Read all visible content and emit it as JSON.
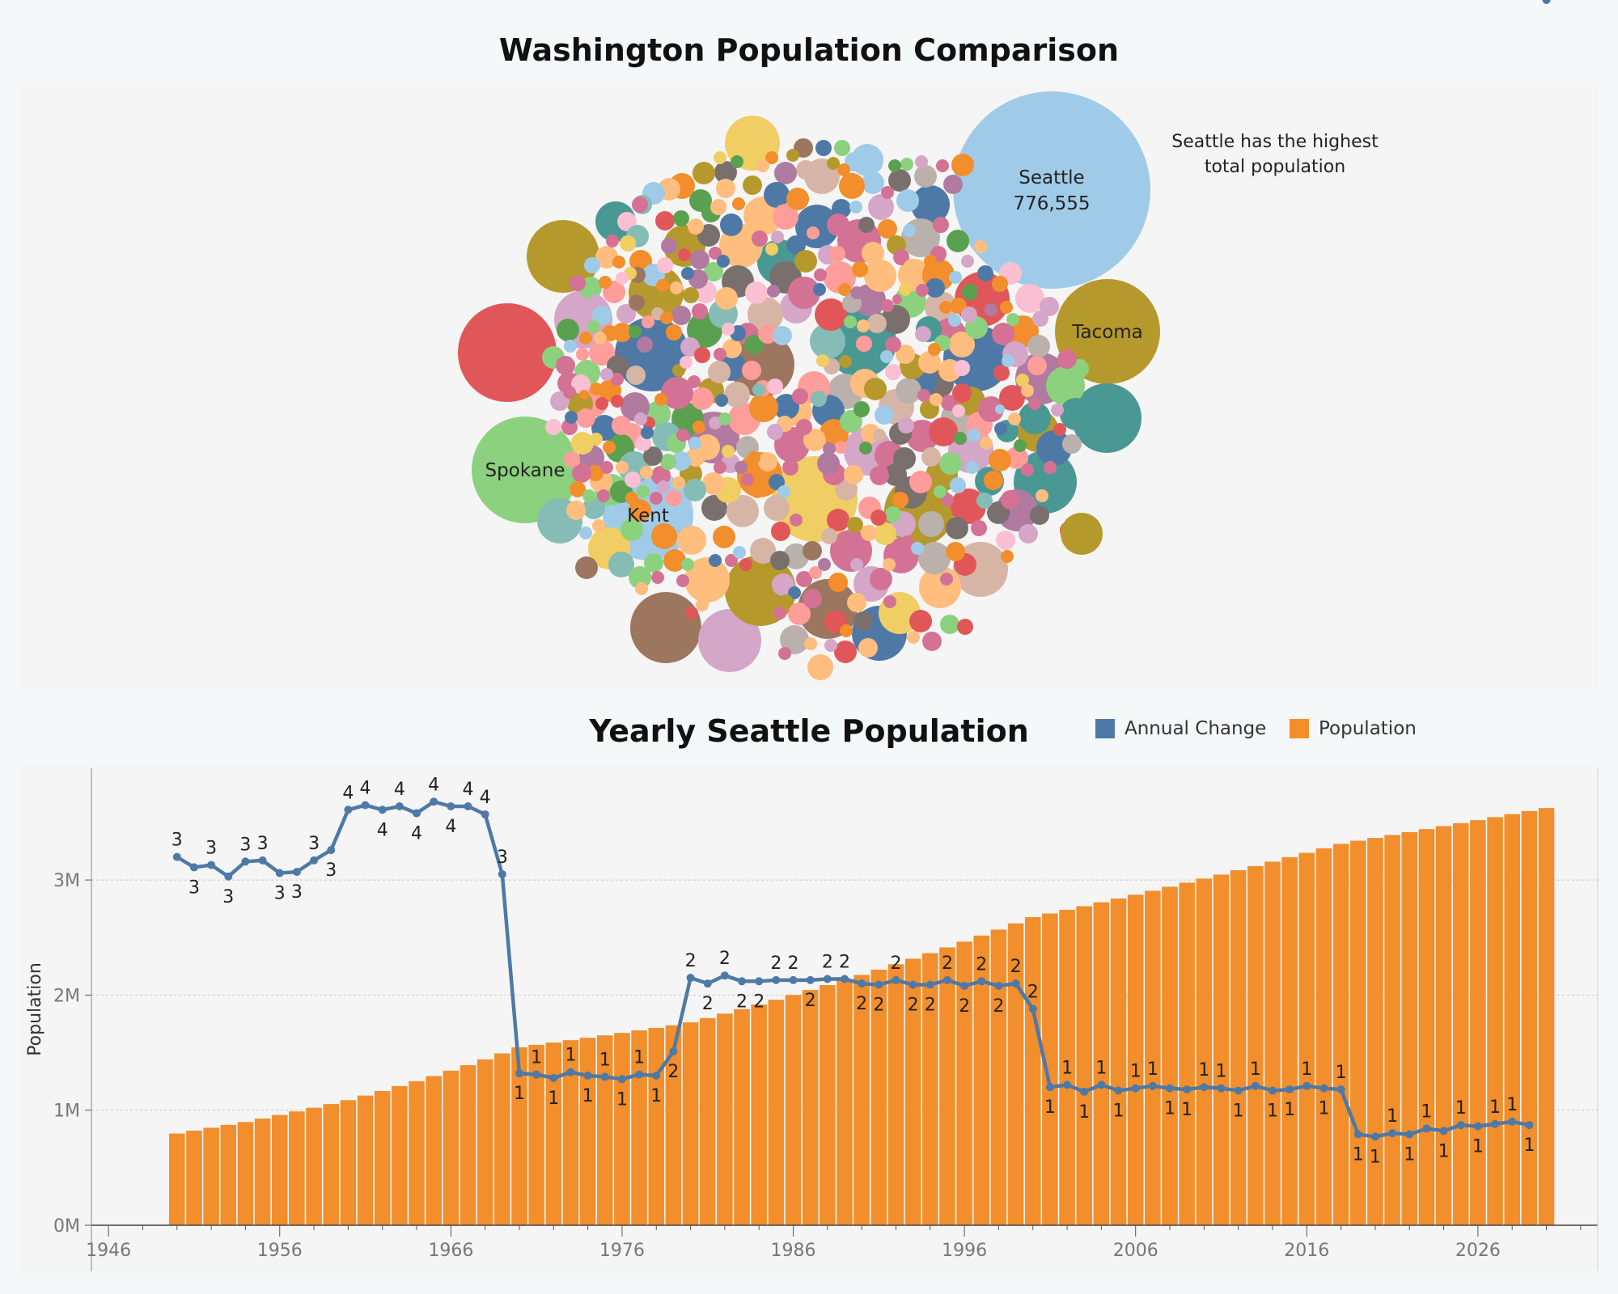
{
  "top_title": "Washington Population Comparison",
  "bottom_title": "Yearly Seattle Population",
  "annotation": {
    "line1": "Seattle has the highest",
    "line2": "total population"
  },
  "legend": [
    {
      "name": "Annual Change",
      "color": "#4e79a7"
    },
    {
      "name": "Population",
      "color": "#f28e2b"
    }
  ],
  "chart_data": [
    {
      "type": "bubble",
      "title": "Washington Population Comparison",
      "labeled_bubbles": [
        {
          "name": "Seattle",
          "value": 776555,
          "value_label": "776,555",
          "color": "#a0cbe8"
        },
        {
          "name": "Tacoma",
          "color": "#b6992d"
        },
        {
          "name": "Spokane",
          "color": "#8cd17d"
        },
        {
          "name": "Kent",
          "color": "#a0cbe8"
        }
      ],
      "palette": [
        "#4e79a7",
        "#a0cbe8",
        "#f28e2b",
        "#ffbe7d",
        "#59a14f",
        "#8cd17d",
        "#b6992d",
        "#f1ce63",
        "#499894",
        "#86bcb6",
        "#e15759",
        "#ff9d9a",
        "#79706e",
        "#bab0ac",
        "#d37295",
        "#fabfd2",
        "#b07aa1",
        "#d4a6c8",
        "#9d7660",
        "#d7b5a6"
      ]
    },
    {
      "type": "bar+line",
      "title": "Yearly Seattle Population",
      "ylabel": "Population",
      "ylim": [
        0,
        3900000
      ],
      "yticks": [
        {
          "value": 0,
          "label": "0M"
        },
        {
          "value": 1000000,
          "label": "1M"
        },
        {
          "value": 2000000,
          "label": "2M"
        },
        {
          "value": 3000000,
          "label": "3M"
        }
      ],
      "xlim": [
        1945,
        2033
      ],
      "xticks": [
        1946,
        1956,
        1966,
        1976,
        1986,
        1996,
        2006,
        2016,
        2026
      ],
      "years": [
        1950,
        1951,
        1952,
        1953,
        1954,
        1955,
        1956,
        1957,
        1958,
        1959,
        1960,
        1961,
        1962,
        1963,
        1964,
        1965,
        1966,
        1967,
        1968,
        1969,
        1970,
        1971,
        1972,
        1973,
        1974,
        1975,
        1976,
        1977,
        1978,
        1979,
        1980,
        1981,
        1982,
        1983,
        1984,
        1985,
        1986,
        1987,
        1988,
        1989,
        1990,
        1991,
        1992,
        1993,
        1994,
        1995,
        1996,
        1997,
        1998,
        1999,
        2000,
        2001,
        2002,
        2003,
        2004,
        2005,
        2006,
        2007,
        2008,
        2009,
        2010,
        2011,
        2012,
        2013,
        2014,
        2015,
        2016,
        2017,
        2018,
        2019,
        2020,
        2021,
        2022,
        2023,
        2024,
        2025,
        2026,
        2027,
        2028,
        2029,
        2030
      ],
      "series": [
        {
          "name": "Population",
          "color": "#f28e2b",
          "values": [
            797000,
            822000,
            847000,
            872000,
            897000,
            927000,
            958000,
            989000,
            1021000,
            1053000,
            1087000,
            1127000,
            1167000,
            1209000,
            1252000,
            1296000,
            1343000,
            1391000,
            1441000,
            1493000,
            1546000,
            1567000,
            1587000,
            1608000,
            1629000,
            1650000,
            1671000,
            1693000,
            1715000,
            1737000,
            1763000,
            1800000,
            1839000,
            1878000,
            1918000,
            1959000,
            2001000,
            2044000,
            2087000,
            2131000,
            2175000,
            2221000,
            2268000,
            2316000,
            2364000,
            2414000,
            2464000,
            2517000,
            2569000,
            2623000,
            2677000,
            2709000,
            2741000,
            2772000,
            2806000,
            2839000,
            2872000,
            2906000,
            2941000,
            2977000,
            3012000,
            3047000,
            3085000,
            3121000,
            3159000,
            3198000,
            3236000,
            3275000,
            3314000,
            3341000,
            3366000,
            3391000,
            3416000,
            3442000,
            3468000,
            3494000,
            3520000,
            3546000,
            3572000,
            3599000,
            3625000
          ]
        },
        {
          "name": "Annual Change",
          "color": "#4e79a7",
          "values": [
            3.2,
            3.11,
            3.13,
            3.03,
            3.16,
            3.17,
            3.06,
            3.07,
            3.17,
            3.26,
            3.61,
            3.65,
            3.61,
            3.64,
            3.58,
            3.68,
            3.64,
            3.64,
            3.57,
            3.05,
            1.32,
            1.31,
            1.28,
            1.33,
            1.3,
            1.29,
            1.27,
            1.31,
            1.3,
            1.51,
            2.15,
            2.1,
            2.17,
            2.12,
            2.12,
            2.13,
            2.13,
            2.13,
            2.14,
            2.14,
            2.1,
            2.09,
            2.13,
            2.09,
            2.09,
            2.13,
            2.08,
            2.12,
            2.08,
            2.1,
            1.88,
            1.2,
            1.22,
            1.16,
            1.22,
            1.17,
            1.19,
            1.21,
            1.19,
            1.18,
            1.2,
            1.19,
            1.17,
            1.21,
            1.17,
            1.18,
            1.21,
            1.19,
            1.18,
            0.79,
            0.77,
            0.8,
            0.79,
            0.84,
            0.82,
            0.87,
            0.86,
            0.88,
            0.9,
            0.87
          ],
          "labels": [
            "3",
            "3",
            "3",
            "3",
            "3",
            "3",
            "3",
            "3",
            "3",
            "3",
            "4",
            "4",
            "4",
            "4",
            "4",
            "4",
            "4",
            "4",
            "4",
            "3",
            "1",
            "1",
            "1",
            "1",
            "1",
            "1",
            "1",
            "1",
            "1",
            "2",
            "2",
            "2",
            "2",
            "2",
            "2",
            "2",
            "2",
            "2",
            "2",
            "2",
            "2",
            "2",
            "2",
            "2",
            "2",
            "2",
            "2",
            "2",
            "2",
            "2",
            "2",
            "1",
            "1",
            "1",
            "1",
            "1",
            "1",
            "1",
            "1",
            "1",
            "1",
            "1",
            "1",
            "1",
            "1",
            "1",
            "1",
            "1",
            "1",
            "1",
            "1",
            "1",
            "1",
            "1",
            "1",
            "1",
            "1",
            "1",
            "1",
            "1"
          ]
        }
      ]
    }
  ]
}
